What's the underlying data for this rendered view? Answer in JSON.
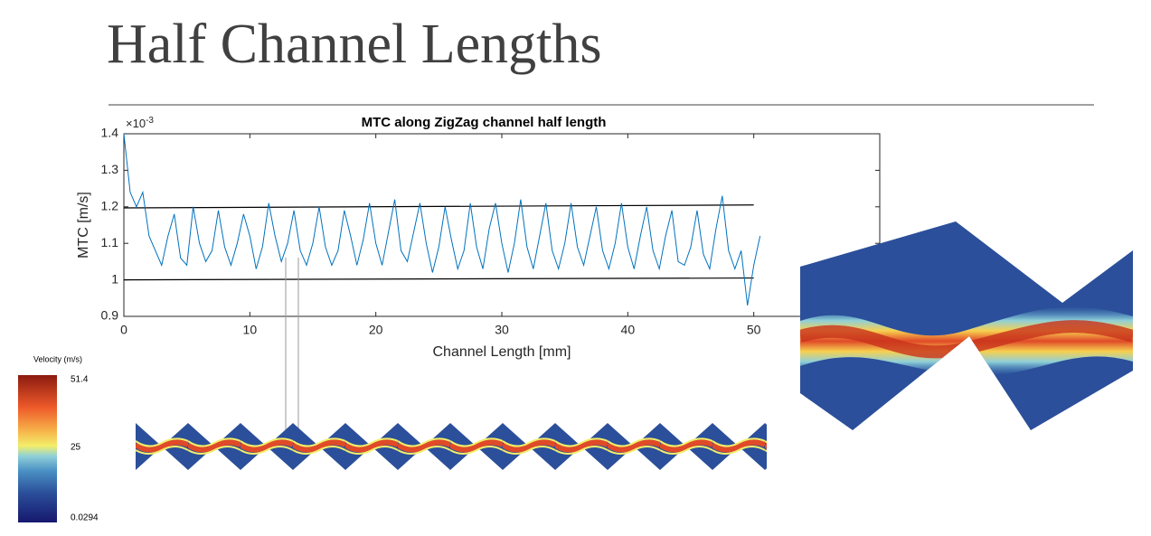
{
  "slide_title": "Half Channel Lengths",
  "chart_data": {
    "type": "line",
    "title": "MTC along ZigZag channel half length",
    "xlabel": "Channel Length [mm]",
    "ylabel": "MTC [m/s]",
    "y_multiplier": {
      "base": "×10",
      "exponent": "-3"
    },
    "x": [
      0,
      0.5,
      1,
      1.5,
      2,
      2.5,
      3,
      3.5,
      4,
      4.5,
      5,
      5.5,
      6,
      6.5,
      7,
      7.5,
      8,
      8.5,
      9,
      9.5,
      10,
      10.5,
      11,
      11.5,
      12,
      12.5,
      13,
      13.5,
      14,
      14.5,
      15,
      15.5,
      16,
      16.5,
      17,
      17.5,
      18,
      18.5,
      19,
      19.5,
      20,
      20.5,
      21,
      21.5,
      22,
      22.5,
      23,
      23.5,
      24,
      24.5,
      25,
      25.5,
      26,
      26.5,
      27,
      27.5,
      28,
      28.5,
      29,
      29.5,
      30,
      30.5,
      31,
      31.5,
      32,
      32.5,
      33,
      33.5,
      34,
      34.5,
      35,
      35.5,
      36,
      36.5,
      37,
      37.5,
      38,
      38.5,
      39,
      39.5,
      40,
      40.5,
      41,
      41.5,
      42,
      42.5,
      43,
      43.5,
      44,
      44.5,
      45,
      45.5,
      46,
      46.5,
      47,
      47.5,
      48,
      48.5,
      49,
      49.5,
      50,
      50.5
    ],
    "series": [
      {
        "color": "#0072bd",
        "values": [
          1.4,
          1.24,
          1.2,
          1.24,
          1.12,
          1.08,
          1.04,
          1.12,
          1.18,
          1.06,
          1.04,
          1.2,
          1.1,
          1.05,
          1.08,
          1.19,
          1.09,
          1.04,
          1.1,
          1.18,
          1.12,
          1.03,
          1.09,
          1.21,
          1.12,
          1.05,
          1.1,
          1.19,
          1.08,
          1.04,
          1.1,
          1.2,
          1.09,
          1.04,
          1.08,
          1.19,
          1.12,
          1.04,
          1.11,
          1.21,
          1.1,
          1.04,
          1.13,
          1.22,
          1.08,
          1.05,
          1.13,
          1.21,
          1.1,
          1.02,
          1.09,
          1.2,
          1.11,
          1.03,
          1.08,
          1.21,
          1.09,
          1.03,
          1.14,
          1.21,
          1.1,
          1.02,
          1.1,
          1.22,
          1.09,
          1.03,
          1.12,
          1.21,
          1.08,
          1.03,
          1.1,
          1.21,
          1.09,
          1.04,
          1.12,
          1.2,
          1.08,
          1.03,
          1.1,
          1.21,
          1.09,
          1.03,
          1.12,
          1.2,
          1.08,
          1.03,
          1.12,
          1.19,
          1.05,
          1.04,
          1.09,
          1.19,
          1.07,
          1.03,
          1.14,
          1.23,
          1.08,
          1.03,
          1.08,
          0.93,
          1.04,
          1.12
        ]
      }
    ],
    "bound_lines": {
      "color": "#000000",
      "x": [
        0,
        50
      ],
      "lines": [
        [
          1.197,
          1.205
        ],
        [
          1.0,
          1.005
        ]
      ]
    },
    "xlim": [
      0,
      60
    ],
    "ylim": [
      0.9,
      1.4
    ],
    "xticks": [
      0,
      10,
      20,
      30,
      40,
      50
    ],
    "yticks": [
      0.9,
      1,
      1.1,
      1.2,
      1.3,
      1.4
    ]
  },
  "colorbar": {
    "title": "Velocity (m/s)",
    "labels": [
      "51.4",
      "25",
      "0.0294"
    ]
  }
}
